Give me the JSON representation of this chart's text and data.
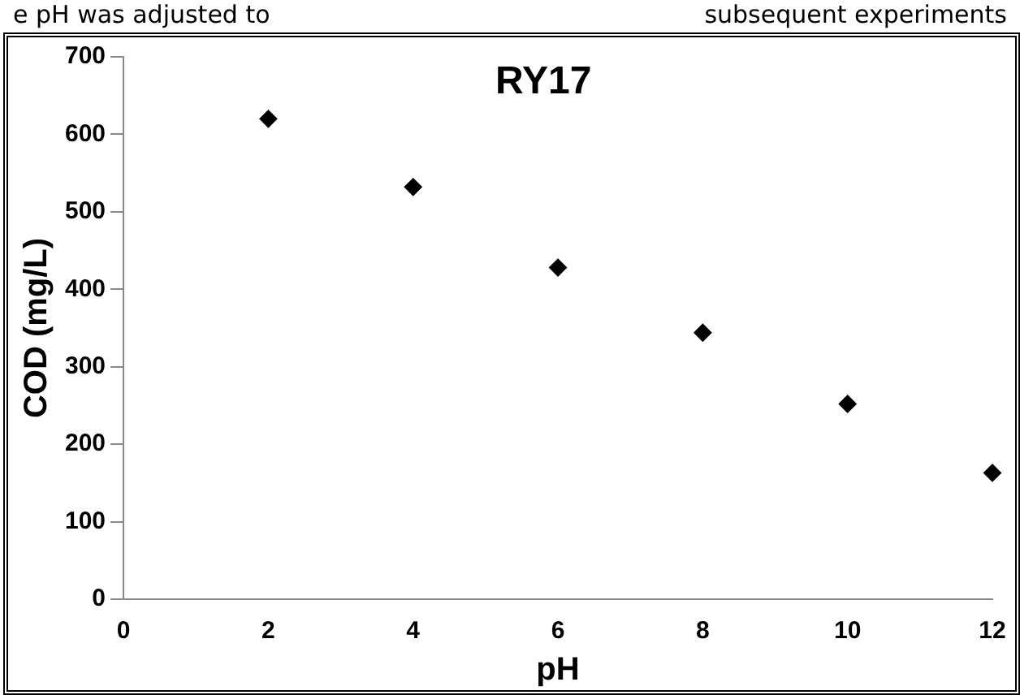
{
  "chart_data": {
    "type": "scatter",
    "title": "RY17",
    "xlabel": "pH",
    "ylabel": "COD (mg/L)",
    "x": [
      2,
      4,
      6,
      8,
      10,
      12
    ],
    "series": [
      {
        "color": "#000000",
        "values": [
          620,
          532,
          428,
          344,
          252,
          163
        ]
      }
    ],
    "xlim": [
      0,
      12
    ],
    "xticks": [
      0,
      2,
      4,
      6,
      8,
      10,
      12
    ],
    "ylim": [
      0,
      700
    ],
    "yticks": [
      0,
      100,
      200,
      300,
      400,
      500,
      600,
      700
    ],
    "grid": false,
    "legend": false,
    "marker": "diamond",
    "annotations": [
      "e pH was adjusted to",
      "subsequent experiments"
    ]
  }
}
